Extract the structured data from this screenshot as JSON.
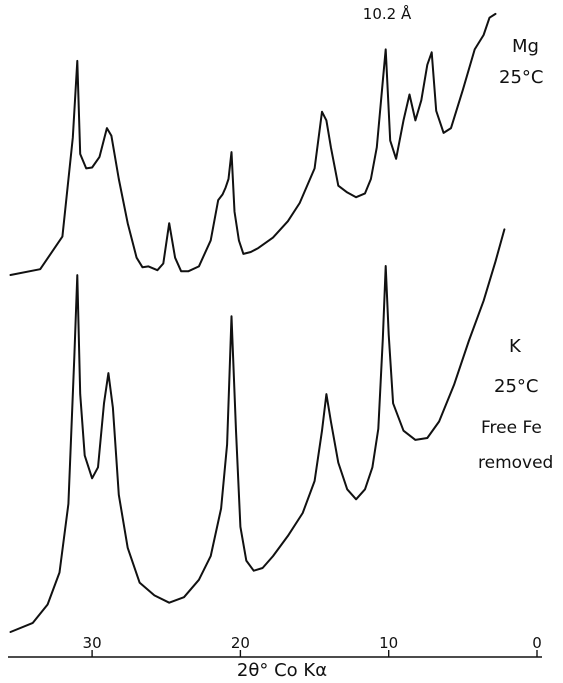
{
  "chart_data": {
    "type": "line",
    "xlabel": "2θ° Co Kα",
    "xlim": [
      36,
      0
    ],
    "x_ticks": [
      30,
      20,
      10,
      0
    ],
    "x_tick_labels": [
      "30",
      "20",
      "10",
      "0"
    ],
    "annotations": [
      "10.2 Å"
    ],
    "series": [
      {
        "name": "Mg 25°C",
        "label_lines": [
          "Mg",
          "25°C"
        ],
        "x": [
          35.5,
          33.5,
          32.0,
          31.3,
          31.0,
          30.8,
          30.4,
          30.0,
          29.5,
          29.0,
          28.7,
          28.2,
          27.6,
          27.0,
          26.6,
          26.2,
          25.6,
          25.2,
          24.8,
          24.4,
          24.0,
          23.5,
          22.8,
          22.0,
          21.5,
          21.2,
          21.0,
          20.8,
          20.6,
          20.4,
          20.1,
          19.8,
          19.3,
          18.8,
          17.8,
          16.8,
          16.0,
          15.0,
          14.5,
          14.2,
          13.9,
          13.4,
          12.8,
          12.2,
          11.6,
          11.2,
          10.8,
          10.4,
          10.2,
          9.9,
          9.5,
          9.0,
          8.6,
          8.2,
          7.8,
          7.4,
          7.1,
          6.8,
          6.3,
          5.8,
          5.0,
          4.2,
          3.6,
          3.2,
          2.8
        ],
        "y": [
          0.0,
          0.6,
          4.0,
          14.3,
          22.3,
          12.6,
          11.1,
          11.2,
          12.3,
          15.3,
          14.5,
          10.0,
          5.4,
          1.8,
          0.8,
          0.9,
          0.5,
          1.2,
          5.4,
          1.8,
          0.4,
          0.4,
          0.9,
          3.6,
          7.8,
          8.4,
          9.1,
          10.0,
          12.8,
          6.6,
          3.6,
          2.2,
          2.4,
          2.8,
          3.9,
          5.6,
          7.5,
          11.1,
          17.0,
          16.1,
          13.3,
          9.3,
          8.6,
          8.1,
          8.5,
          10.0,
          13.3,
          20.2,
          23.5,
          14.0,
          12.1,
          16.1,
          18.8,
          16.1,
          18.2,
          21.9,
          23.2,
          17.1,
          14.8,
          15.3,
          19.3,
          23.5,
          25.0,
          26.8,
          27.2
        ]
      },
      {
        "name": "K 25°C Free Fe removed",
        "label_lines": [
          "K",
          "25°C",
          "Free Fe",
          "removed"
        ],
        "x": [
          35.5,
          34.0,
          33.0,
          32.2,
          31.6,
          31.2,
          31.0,
          30.8,
          30.5,
          30.0,
          29.6,
          29.2,
          28.9,
          28.6,
          28.2,
          27.6,
          26.8,
          25.8,
          24.8,
          23.8,
          22.8,
          22.0,
          21.3,
          20.9,
          20.6,
          20.3,
          20.0,
          19.6,
          19.1,
          18.5,
          17.8,
          16.8,
          15.8,
          15.0,
          14.5,
          14.2,
          13.9,
          13.4,
          12.8,
          12.2,
          11.6,
          11.1,
          10.7,
          10.4,
          10.2,
          10.0,
          9.7,
          9.0,
          8.2,
          7.4,
          6.6,
          5.6,
          4.6,
          3.6,
          2.8,
          2.2
        ],
        "y": [
          0.0,
          1.0,
          3.0,
          6.5,
          14.0,
          30.0,
          39.0,
          26.0,
          19.3,
          16.8,
          18.0,
          25.0,
          28.3,
          24.5,
          15.0,
          9.2,
          5.4,
          4.0,
          3.2,
          3.8,
          5.7,
          8.3,
          13.5,
          20.5,
          34.5,
          22.0,
          11.5,
          7.8,
          6.7,
          7.0,
          8.3,
          10.5,
          13.0,
          16.5,
          22.0,
          26.0,
          23.0,
          18.5,
          15.6,
          14.5,
          15.6,
          18.0,
          22.2,
          32.0,
          40.0,
          32.5,
          25.0,
          22.0,
          21.0,
          21.2,
          23.0,
          27.0,
          31.8,
          36.2,
          40.5,
          44.0
        ]
      }
    ]
  }
}
